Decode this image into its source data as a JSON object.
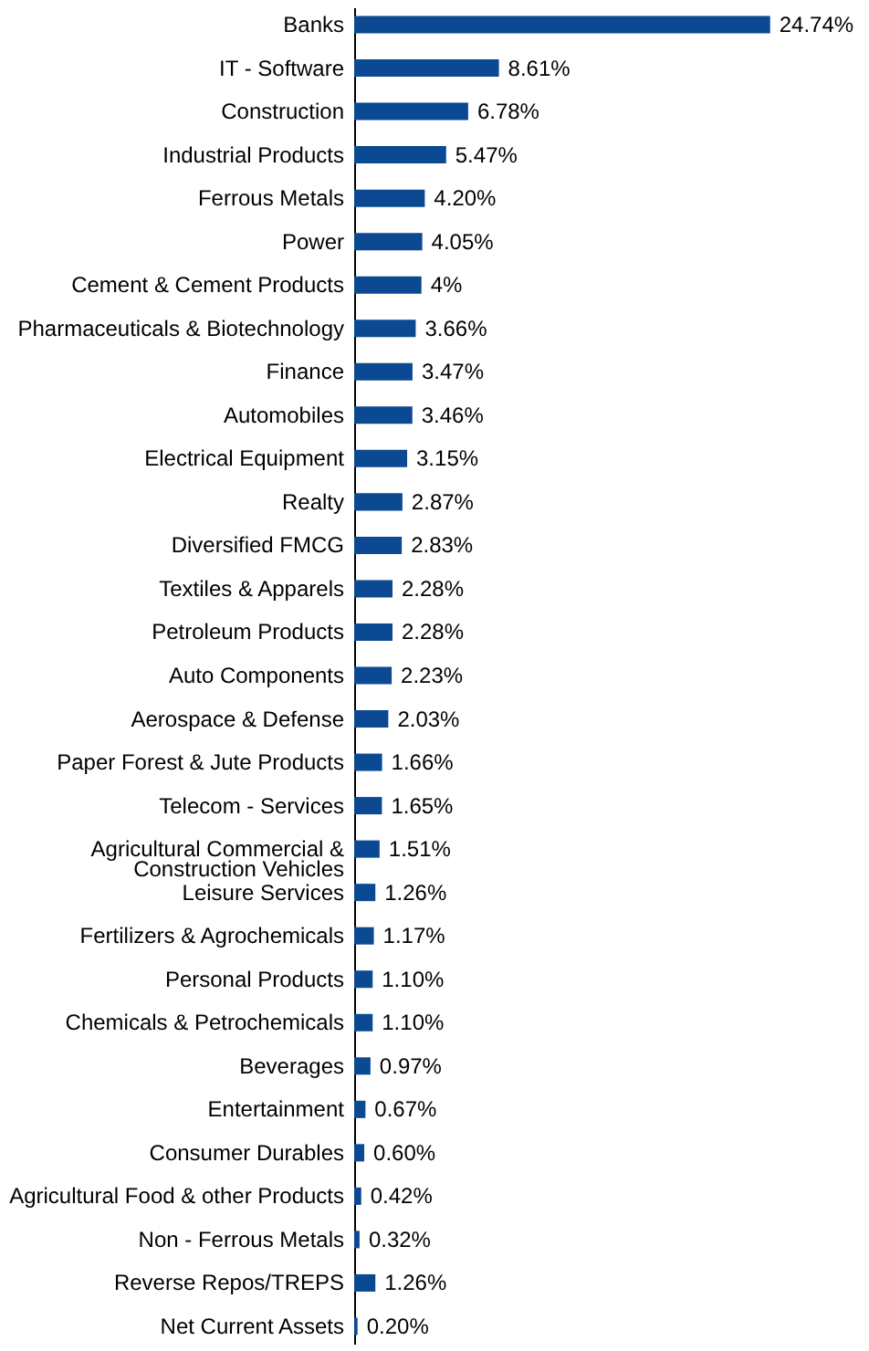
{
  "chart_data": {
    "type": "bar",
    "orientation": "horizontal",
    "categories": [
      "Banks",
      "IT - Software",
      "Construction",
      "Industrial Products",
      "Ferrous Metals",
      "Power",
      "Cement & Cement Products",
      "Pharmaceuticals & Biotechnology",
      "Finance",
      "Automobiles",
      "Electrical Equipment",
      "Realty",
      "Diversified FMCG",
      "Textiles & Apparels",
      "Petroleum Products",
      "Auto Components",
      "Aerospace & Defense",
      "Paper Forest & Jute Products",
      "Telecom - Services",
      "Agricultural Commercial & Construction Vehicles",
      "Leisure Services",
      "Fertilizers & Agrochemicals",
      "Personal Products",
      "Chemicals & Petrochemicals",
      "Beverages",
      "Entertainment",
      "Consumer Durables",
      "Agricultural Food & other Products",
      "Non - Ferrous Metals",
      "Reverse Repos/TREPS",
      "Net Current Assets"
    ],
    "values": [
      24.74,
      8.61,
      6.78,
      5.47,
      4.2,
      4.05,
      4,
      3.66,
      3.47,
      3.46,
      3.15,
      2.87,
      2.83,
      2.28,
      2.28,
      2.23,
      2.03,
      1.66,
      1.65,
      1.51,
      1.26,
      1.17,
      1.1,
      1.1,
      0.97,
      0.67,
      0.6,
      0.42,
      0.32,
      1.26,
      0.2
    ],
    "value_labels": [
      "24.74%",
      "8.61%",
      "6.78%",
      "5.47%",
      "4.20%",
      "4.05%",
      "4%",
      "3.66%",
      "3.47%",
      "3.46%",
      "3.15%",
      "2.87%",
      "2.83%",
      "2.28%",
      "2.28%",
      "2.23%",
      "2.03%",
      "1.66%",
      "1.65%",
      "1.51%",
      "1.26%",
      "1.17%",
      "1.10%",
      "1.10%",
      "0.97%",
      "0.67%",
      "0.60%",
      "0.42%",
      "0.32%",
      "1.26%",
      "0.20%"
    ],
    "color": "#0b4a92",
    "tick_labels": "y",
    "grid": false
  }
}
